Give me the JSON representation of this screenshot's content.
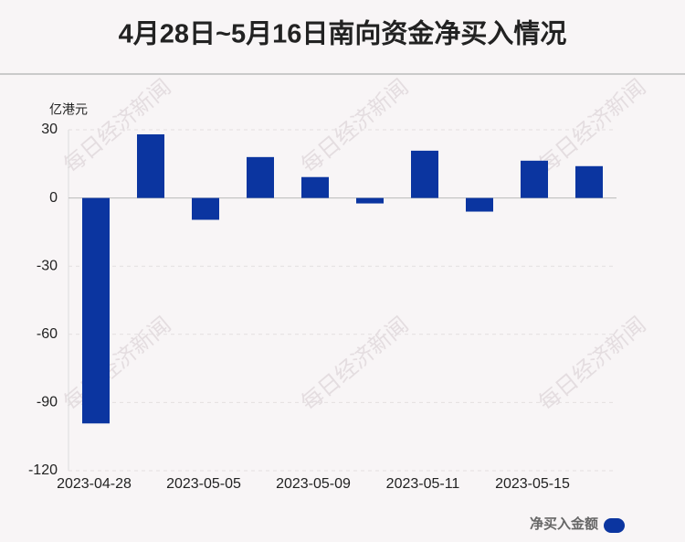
{
  "chart_data": {
    "type": "bar",
    "title": "4月28日~5月16日南向资金净买入情况",
    "y_label": "亿港元",
    "watermark": "每日经济新闻",
    "categories": [
      "2023-04-28",
      null,
      "2023-05-05",
      null,
      "2023-05-09",
      null,
      "2023-05-11",
      null,
      "2023-05-15",
      null
    ],
    "series": [
      {
        "name": "净买入金额",
        "color": "#0b35a0",
        "values": [
          -99.2,
          28,
          -9.6,
          18,
          9.2,
          -2.4,
          20.8,
          -6,
          16.4,
          14
        ]
      }
    ],
    "ylim": [
      -120,
      30
    ],
    "yticks": [
      -120,
      -90,
      -60,
      -30,
      0,
      30
    ],
    "grid": true,
    "legend": "bottom-right"
  }
}
